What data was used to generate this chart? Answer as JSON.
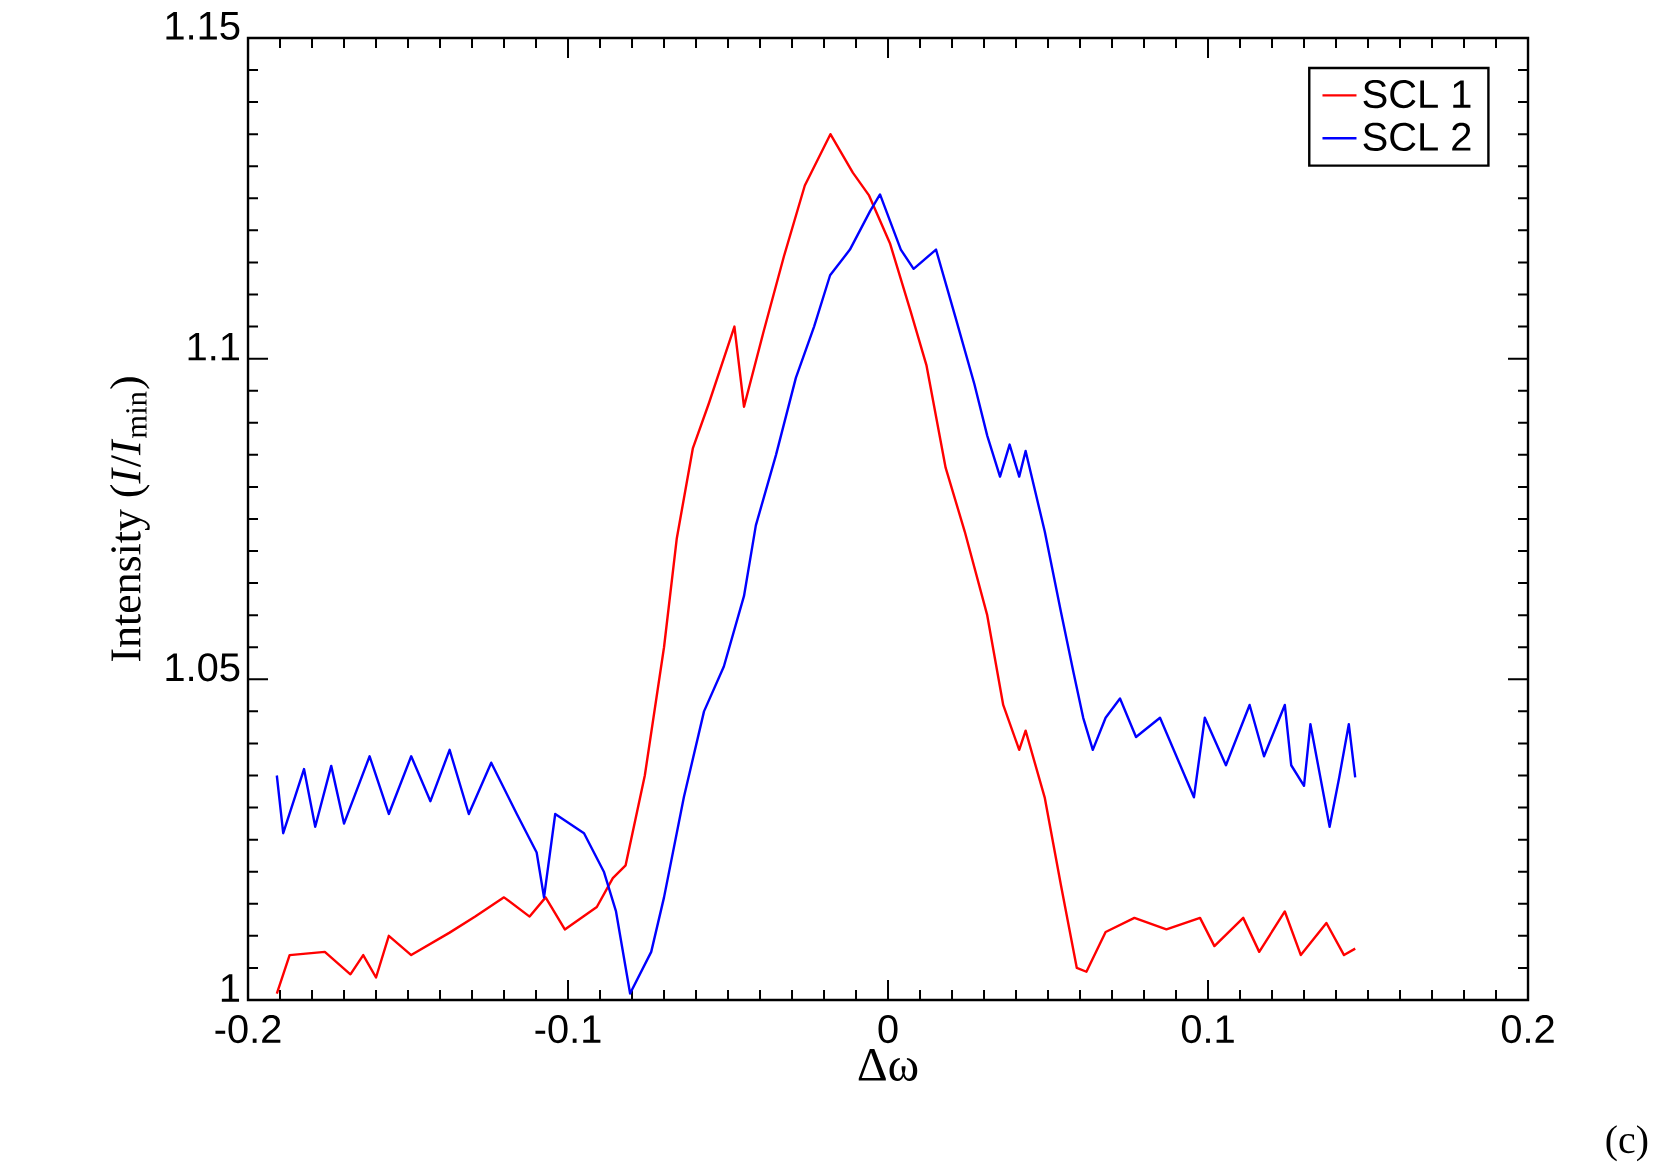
{
  "chart_data": {
    "type": "line",
    "xlabel": "Δω",
    "ylabel": "Intensity (*I*/*I*$_{min}$)",
    "annotations": [
      "(c)"
    ],
    "xlim": [
      -0.2,
      0.2
    ],
    "ylim": [
      1,
      1.15
    ],
    "xticks": [
      -0.2,
      -0.1,
      0,
      0.1,
      0.2
    ],
    "yticks": [
      1,
      1.05,
      1.1,
      1.15
    ],
    "grid": false,
    "legend": "top right",
    "marker": "none",
    "line_style": "solid",
    "series": [
      {
        "name": "SCL 1",
        "color": "#ff0000",
        "x": [
          -0.191,
          -0.187,
          -0.176,
          -0.168,
          -0.164,
          -0.16,
          -0.156,
          -0.149,
          -0.137,
          -0.129,
          -0.12,
          -0.112,
          -0.107,
          -0.101,
          -0.091,
          -0.086,
          -0.082,
          -0.076,
          -0.07,
          -0.066,
          -0.061,
          -0.056,
          -0.048,
          -0.045,
          -0.039,
          -0.0325,
          -0.026,
          -0.018,
          -0.011,
          -0.006,
          0.0006,
          0.007,
          0.012,
          0.018,
          0.024,
          0.031,
          0.036,
          0.041,
          0.043,
          0.049,
          0.054,
          0.059,
          0.062,
          0.068,
          0.077,
          0.087,
          0.0975,
          0.102,
          0.111,
          0.116,
          0.124,
          0.129,
          0.137,
          0.1425,
          0.146
        ],
        "values": [
          1.001,
          1.007,
          1.0075,
          1.004,
          1.007,
          1.0035,
          1.01,
          1.007,
          1.0105,
          1.013,
          1.016,
          1.013,
          1.016,
          1.011,
          1.0145,
          1.019,
          1.021,
          1.035,
          1.055,
          1.072,
          1.086,
          1.093,
          1.105,
          1.0925,
          1.104,
          1.116,
          1.127,
          1.135,
          1.129,
          1.1255,
          1.118,
          1.1075,
          1.099,
          1.083,
          1.073,
          1.06,
          1.046,
          1.039,
          1.042,
          1.0315,
          1.018,
          1.005,
          1.0044,
          1.0106,
          1.0128,
          1.011,
          1.0128,
          1.0084,
          1.0128,
          1.0075,
          1.0138,
          1.007,
          1.012,
          1.007,
          1.008
        ]
      },
      {
        "name": "SCL 2",
        "color": "#0000ff",
        "x": [
          -0.191,
          -0.189,
          -0.1825,
          -0.179,
          -0.174,
          -0.17,
          -0.162,
          -0.156,
          -0.149,
          -0.143,
          -0.137,
          -0.131,
          -0.124,
          -0.116,
          -0.1098,
          -0.1075,
          -0.104,
          -0.095,
          -0.0888,
          -0.085,
          -0.0806,
          -0.074,
          -0.07,
          -0.0638,
          -0.0575,
          -0.0513,
          -0.045,
          -0.0413,
          -0.035,
          -0.0288,
          -0.0231,
          -0.0181,
          -0.0119,
          -0.0056,
          -0.0025,
          0.004,
          0.008,
          0.015,
          0.021,
          0.027,
          0.031,
          0.035,
          0.038,
          0.041,
          0.043,
          0.049,
          0.054,
          0.058,
          0.061,
          0.064,
          0.068,
          0.0725,
          0.0775,
          0.085,
          0.0956,
          0.099,
          0.1056,
          0.113,
          0.1175,
          0.124,
          0.126,
          0.13,
          0.132,
          0.138,
          0.141,
          0.144,
          0.146
        ],
        "values": [
          1.035,
          1.026,
          1.036,
          1.027,
          1.0365,
          1.0275,
          1.038,
          1.029,
          1.038,
          1.031,
          1.039,
          1.029,
          1.037,
          1.029,
          1.023,
          1.016,
          1.029,
          1.026,
          1.02,
          1.0138,
          1.001,
          1.0075,
          1.016,
          1.0316,
          1.045,
          1.052,
          1.063,
          1.074,
          1.085,
          1.097,
          1.105,
          1.113,
          1.117,
          1.123,
          1.1256,
          1.117,
          1.114,
          1.117,
          1.1066,
          1.096,
          1.088,
          1.0816,
          1.0866,
          1.0816,
          1.0856,
          1.073,
          1.0606,
          1.051,
          1.044,
          1.039,
          1.044,
          1.047,
          1.041,
          1.044,
          1.0316,
          1.044,
          1.0366,
          1.046,
          1.038,
          1.046,
          1.0366,
          1.0334,
          1.043,
          1.027,
          1.0347,
          1.043,
          1.0347
        ]
      }
    ]
  }
}
